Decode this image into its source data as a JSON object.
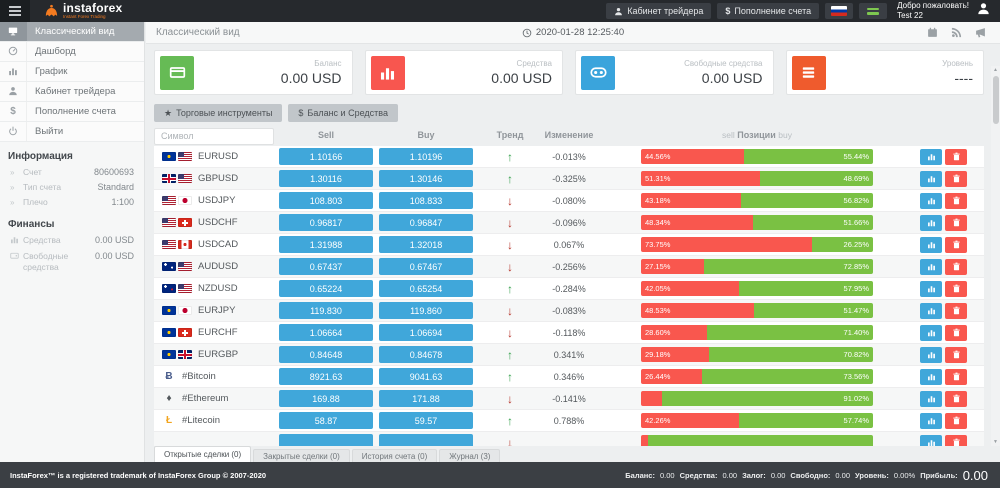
{
  "topbar": {
    "brand": {
      "name": "instaforex",
      "tagline": "Instant Forex Trading"
    },
    "trader_cabinet_label": "Кабинет трейдера",
    "deposit_label": "Пополнение счета",
    "deposit_glyph": "$",
    "welcome_line1": "Добро пожаловать!",
    "welcome_line2": "Test 22"
  },
  "sidebar": {
    "menu": [
      {
        "label": "Классический вид",
        "icon": "monitor-icon",
        "active": true
      },
      {
        "label": "Дашборд",
        "icon": "gauge-icon",
        "active": false
      },
      {
        "label": "График",
        "icon": "bar-chart-icon",
        "active": false
      },
      {
        "label": "Кабинет трейдера",
        "icon": "person-icon",
        "active": false
      },
      {
        "label": "Пополнение счета",
        "icon": "dollar-glyph",
        "active": false
      },
      {
        "label": "Выйти",
        "icon": "power-icon",
        "active": false
      }
    ],
    "info": {
      "title": "Информация",
      "rows": [
        {
          "label": "Счет",
          "value": "80600693"
        },
        {
          "label": "Тип счета",
          "value": "Standard"
        },
        {
          "label": "Плечо",
          "value": "1:100"
        }
      ]
    },
    "finance": {
      "title": "Финансы",
      "rows": [
        {
          "label": "Средства",
          "value": "0.00 USD",
          "icon": "bar-chart-icon"
        },
        {
          "label": "Свободные средства",
          "value": "0.00 USD",
          "icon": "wallet-icon"
        }
      ]
    }
  },
  "page": {
    "title": "Классический вид",
    "datetime": "2020-01-28 12:25:40",
    "cards": [
      {
        "label": "Баланс",
        "value": "0.00 USD",
        "icon": "credit-card-icon",
        "color": "#66bb55"
      },
      {
        "label": "Средства",
        "value": "0.00 USD",
        "icon": "bar-chart-icon",
        "color": "#f8564f"
      },
      {
        "label": "Свободные средства",
        "value": "0.00 USD",
        "icon": "binoculars-icon",
        "color": "#3aa4dc"
      },
      {
        "label": "Уровень",
        "value": "----",
        "icon": "menu-icon",
        "color": "#ef5b2d"
      }
    ],
    "view_tabs": [
      {
        "label": "Торговые инструменты",
        "glyph": "★"
      },
      {
        "label": "Баланс и Средства",
        "glyph": "$"
      }
    ],
    "table": {
      "filter_placeholder": "Символ",
      "headers": {
        "sell": "Sell",
        "buy": "Buy",
        "trend": "Тренд",
        "change": "Изменение",
        "pos_sell": "sell",
        "pos_mid": "Позиции",
        "pos_buy": "buy"
      },
      "rows": [
        {
          "symbol": "EURUSD",
          "flags": [
            "eu",
            "us"
          ],
          "sell": "1.10166",
          "buy": "1.10196",
          "trend": "up",
          "change": "-0.013%",
          "sell_pct": 44.56,
          "buy_pct": 55.44,
          "sell_label": "44.56%",
          "buy_label": "55.44%"
        },
        {
          "symbol": "GBPUSD",
          "flags": [
            "gb",
            "us"
          ],
          "sell": "1.30116",
          "buy": "1.30146",
          "trend": "up",
          "change": "-0.325%",
          "sell_pct": 51.31,
          "buy_pct": 48.69,
          "sell_label": "51.31%",
          "buy_label": "48.69%"
        },
        {
          "symbol": "USDJPY",
          "flags": [
            "us",
            "jp"
          ],
          "sell": "108.803",
          "buy": "108.833",
          "trend": "down",
          "change": "-0.080%",
          "sell_pct": 43.18,
          "buy_pct": 56.82,
          "sell_label": "43.18%",
          "buy_label": "56.82%"
        },
        {
          "symbol": "USDCHF",
          "flags": [
            "us",
            "ch"
          ],
          "sell": "0.96817",
          "buy": "0.96847",
          "trend": "down",
          "change": "-0.096%",
          "sell_pct": 48.34,
          "buy_pct": 51.66,
          "sell_label": "48.34%",
          "buy_label": "51.66%"
        },
        {
          "symbol": "USDCAD",
          "flags": [
            "us",
            "ca"
          ],
          "sell": "1.31988",
          "buy": "1.32018",
          "trend": "down",
          "change": "0.067%",
          "sell_pct": 73.75,
          "buy_pct": 26.25,
          "sell_label": "73.75%",
          "buy_label": "26.25%"
        },
        {
          "symbol": "AUDUSD",
          "flags": [
            "au",
            "us"
          ],
          "sell": "0.67437",
          "buy": "0.67467",
          "trend": "down",
          "change": "-0.256%",
          "sell_pct": 27.15,
          "buy_pct": 72.85,
          "sell_label": "27.15%",
          "buy_label": "72.85%"
        },
        {
          "symbol": "NZDUSD",
          "flags": [
            "nz",
            "us"
          ],
          "sell": "0.65224",
          "buy": "0.65254",
          "trend": "up",
          "change": "-0.284%",
          "sell_pct": 42.05,
          "buy_pct": 57.95,
          "sell_label": "42.05%",
          "buy_label": "57.95%"
        },
        {
          "symbol": "EURJPY",
          "flags": [
            "eu",
            "jp"
          ],
          "sell": "119.830",
          "buy": "119.860",
          "trend": "down",
          "change": "-0.083%",
          "sell_pct": 48.53,
          "buy_pct": 51.47,
          "sell_label": "48.53%",
          "buy_label": "51.47%"
        },
        {
          "symbol": "EURCHF",
          "flags": [
            "eu",
            "ch"
          ],
          "sell": "1.06664",
          "buy": "1.06694",
          "trend": "down",
          "change": "-0.118%",
          "sell_pct": 28.6,
          "buy_pct": 71.4,
          "sell_label": "28.60%",
          "buy_label": "71.40%"
        },
        {
          "symbol": "EURGBP",
          "flags": [
            "eu",
            "gb"
          ],
          "sell": "0.84648",
          "buy": "0.84678",
          "trend": "up",
          "change": "0.341%",
          "sell_pct": 29.18,
          "buy_pct": 70.82,
          "sell_label": "29.18%",
          "buy_label": "70.82%"
        },
        {
          "symbol": "#Bitcoin",
          "crypto_glyph": "Ƀ",
          "crypto_color": "#4a5d8c",
          "sell": "8921.63",
          "buy": "9041.63",
          "trend": "up",
          "change": "0.346%",
          "sell_pct": 26.44,
          "buy_pct": 73.56,
          "sell_label": "26.44%",
          "buy_label": "73.56%"
        },
        {
          "symbol": "#Ethereum",
          "crypto_glyph": "♦",
          "crypto_color": "#53585c",
          "sell": "169.88",
          "buy": "171.88",
          "trend": "down",
          "change": "-0.141%",
          "sell_pct": 8.98,
          "buy_pct": 91.02,
          "sell_label": "",
          "buy_label": "91.02%"
        },
        {
          "symbol": "#Litecoin",
          "crypto_glyph": "Ł",
          "crypto_color": "#f2a51f",
          "sell": "58.87",
          "buy": "59.57",
          "trend": "up",
          "change": "0.788%",
          "sell_pct": 42.26,
          "buy_pct": 57.74,
          "sell_label": "42.26%",
          "buy_label": "57.74%"
        },
        {
          "symbol": "",
          "sell": "",
          "buy": "",
          "trend": "down",
          "change": "",
          "sell_pct": 3,
          "buy_pct": 97,
          "sell_label": "",
          "buy_label": "",
          "partial": true
        }
      ]
    },
    "bottom_tabs": [
      {
        "label": "Открытые сделки (0)",
        "active": true
      },
      {
        "label": "Закрытые сделки (0)",
        "active": false
      },
      {
        "label": "История счета (0)",
        "active": false
      },
      {
        "label": "Журнал (3)",
        "active": false
      }
    ]
  },
  "footer": {
    "copyright": "InstaForex™ is a registered trademark of InstaForex Group © 2007-2020",
    "stats": [
      {
        "label": "Баланс:",
        "value": "0.00"
      },
      {
        "label": "Средства:",
        "value": "0.00"
      },
      {
        "label": "Залог:",
        "value": "0.00"
      },
      {
        "label": "Свободно:",
        "value": "0.00"
      },
      {
        "label": "Уровень:",
        "value": "0.00%"
      },
      {
        "label": "Прибыль:",
        "value": "0.00",
        "big": true
      }
    ]
  },
  "icons": {
    "trend_up_glyph": "↑",
    "trend_down_glyph": "↓",
    "info_row_glyph": "»",
    "star_glyph": "★",
    "dollar_glyph": "$"
  },
  "colors": {
    "accent_blue": "#40a7da",
    "bar_red": "#f9574e",
    "bar_green": "#7ac143",
    "trend_up": "#35a04c",
    "trend_down": "#b5342a",
    "brand_orange": "#f47b20"
  }
}
